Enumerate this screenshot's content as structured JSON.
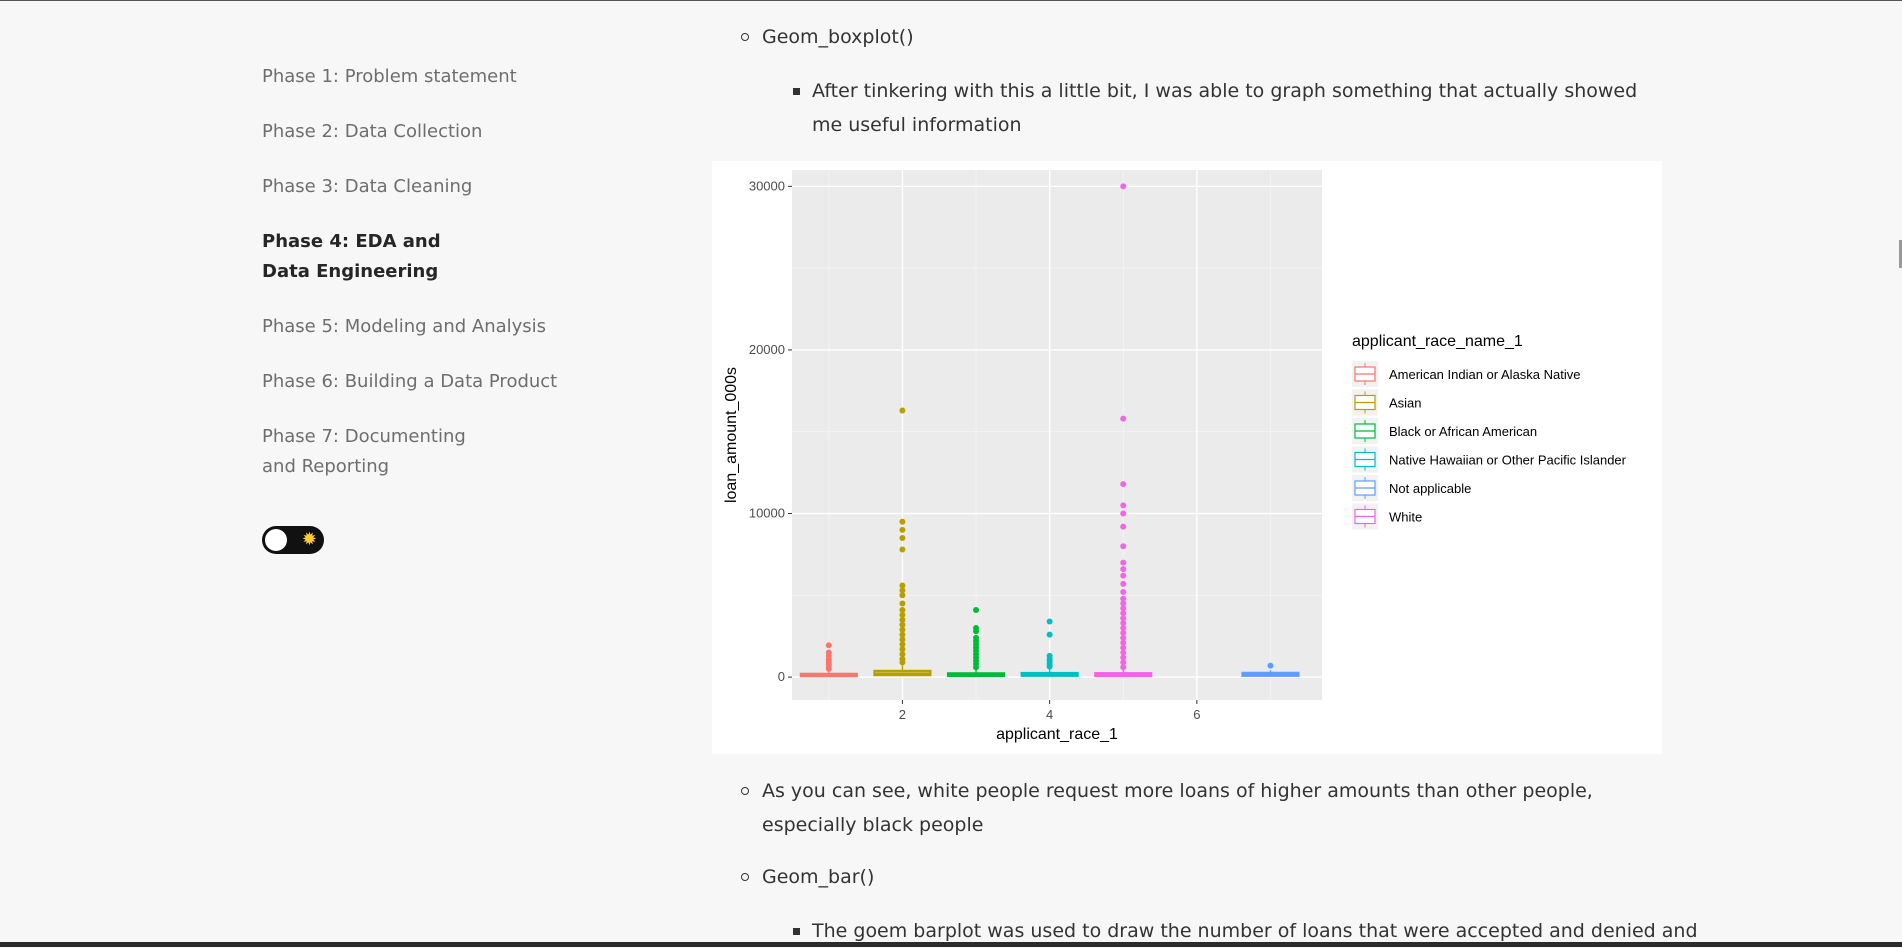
{
  "sidebar": {
    "items": [
      {
        "label": "Phase 1: Problem statement",
        "active": false
      },
      {
        "label": "Phase 2: Data Collection",
        "active": false
      },
      {
        "label": "Phase 3: Data Cleaning",
        "active": false
      },
      {
        "label": "Phase 4: EDA and Data Engineering",
        "active": true
      },
      {
        "label": "Phase 5: Modeling and Analysis",
        "active": false
      },
      {
        "label": "Phase 6: Building a Data Product",
        "active": false
      },
      {
        "label": "Phase 7: Documenting and Reporting",
        "active": false
      }
    ],
    "theme_toggle": {
      "icon": "sun-icon",
      "glyph": "✹"
    }
  },
  "content": {
    "item1": "Geom_boxplot()",
    "item1_sub": "After tinkering with this a little bit, I was able to graph something that actually showed me useful information",
    "item2": "As you can see, white people request more loans of higher amounts than other people, especially black people",
    "item3": "Geom_bar()",
    "item3_sub": "The goem barplot was used to draw the number of loans that were accepted and denied and"
  },
  "chart_data": {
    "type": "boxplot",
    "xlabel": "applicant_race_1",
    "ylabel": "loan_amount_000s",
    "xlim": [
      0.5,
      7.7
    ],
    "ylim": [
      -1400,
      31000
    ],
    "xticks": [
      2,
      4,
      6
    ],
    "yticks": [
      0,
      10000,
      20000,
      30000
    ],
    "yticklabels": [
      "0",
      "10000",
      "20000",
      "30000"
    ],
    "grid": true,
    "legend": {
      "title": "applicant_race_name_1",
      "position": "right",
      "entries": [
        {
          "name": "American Indian or Alaska Native",
          "color": "#f8766d"
        },
        {
          "name": "Asian",
          "color": "#b79f00"
        },
        {
          "name": "Black or African American",
          "color": "#00ba38"
        },
        {
          "name": "Native Hawaiian or Other Pacific Islander",
          "color": "#00bfc4"
        },
        {
          "name": "Not applicable",
          "color": "#619cff"
        },
        {
          "name": "White",
          "color": "#f564e3"
        }
      ]
    },
    "boxes": [
      {
        "x": 1,
        "q1": 60,
        "median": 120,
        "q3": 200,
        "whisker_high": 400,
        "color": "#f8766d",
        "outliers": [
          500,
          650,
          800,
          950,
          1100,
          1300,
          1500,
          1950
        ]
      },
      {
        "x": 2,
        "q1": 120,
        "median": 220,
        "q3": 380,
        "whisker_high": 800,
        "color": "#b79f00",
        "outliers": [
          900,
          1100,
          1400,
          1700,
          2000,
          2300,
          2600,
          2900,
          3200,
          3500,
          3800,
          4100,
          4500,
          5000,
          5300,
          5600,
          7800,
          8500,
          9000,
          9500,
          16300
        ]
      },
      {
        "x": 3,
        "q1": 70,
        "median": 140,
        "q3": 230,
        "whisker_high": 460,
        "color": "#00ba38",
        "outliers": [
          600,
          800,
          1000,
          1200,
          1400,
          1600,
          1800,
          2000,
          2200,
          2400,
          2800,
          3000,
          4100
        ]
      },
      {
        "x": 4,
        "q1": 80,
        "median": 150,
        "q3": 250,
        "whisker_high": 500,
        "color": "#00bfc4",
        "outliers": [
          650,
          800,
          950,
          1100,
          1300,
          2600,
          3400
        ]
      },
      {
        "x": 5,
        "q1": 70,
        "median": 140,
        "q3": 240,
        "whisker_high": 480,
        "color": "#f564e3",
        "outliers": [
          600,
          900,
          1200,
          1500,
          1800,
          2100,
          2400,
          2700,
          3000,
          3300,
          3600,
          3900,
          4200,
          4500,
          4800,
          5200,
          5700,
          6200,
          6600,
          7000,
          8000,
          9200,
          10000,
          10500,
          11800,
          15800,
          30000
        ]
      },
      {
        "x": 7,
        "q1": 80,
        "median": 160,
        "q3": 260,
        "whisker_high": 420,
        "color": "#619cff",
        "outliers": [
          700
        ]
      }
    ]
  }
}
